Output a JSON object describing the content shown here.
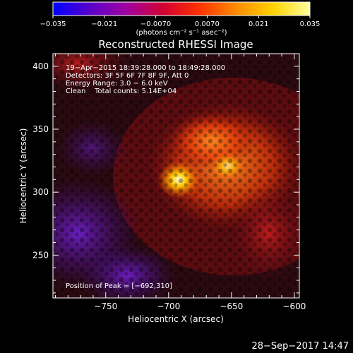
{
  "chart_data": {
    "type": "heatmap",
    "title": "Reconstructed RHESSI Image",
    "xlabel": "Heliocentric X (arcsec)",
    "ylabel": "Heliocentric Y (arcsec)",
    "xlim": [
      -792,
      -596
    ],
    "ylim": [
      216,
      410
    ],
    "x_ticks": [
      -750,
      -700,
      -650,
      -600
    ],
    "x_tick_labels": [
      "−750",
      "−700",
      "−650",
      "−600"
    ],
    "y_ticks": [
      250,
      300,
      350,
      400
    ],
    "y_tick_labels": [
      "250",
      "300",
      "350",
      "400"
    ],
    "colorbar": {
      "range": [
        -0.035,
        0.035
      ],
      "ticks": [
        -0.035,
        -0.021,
        -0.007,
        0.007,
        0.021,
        0.035
      ],
      "tick_labels": [
        "−0.035",
        "−0.021",
        "−0.0070",
        "0.0070",
        "0.021",
        "0.035"
      ],
      "unit_label": "(photons cm⁻² s⁻¹ asec⁻²)",
      "colors": [
        "#0000ff",
        "#5a00c8",
        "#a000a0",
        "#d20032",
        "#ff3200",
        "#ff8c00",
        "#ffd200",
        "#ffffa0"
      ]
    },
    "peak": {
      "x": -692,
      "y": 310,
      "label": "Position of Peak = [−692,310]"
    },
    "annotations": [
      "19−Apr−2015 18:39:28.000 to 18:49:28.000",
      "Detectors: 3F 5F 6F 7F 8F 9F, Att 0",
      "Energy Range: 3.0 − 6.0 keV",
      "Clean    Total counts: 5.14E+04"
    ],
    "grid": false,
    "legend": "none"
  },
  "footer": {
    "timestamp": "28−Sep−2017 14:47"
  }
}
